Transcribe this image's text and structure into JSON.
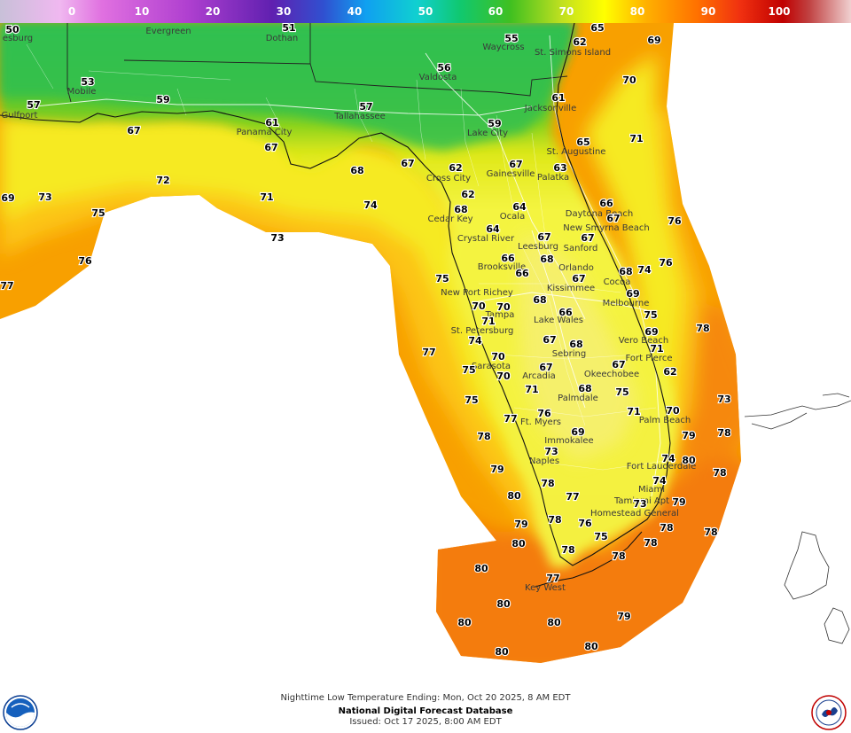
{
  "colorbar": {
    "labels": [
      "0",
      "10",
      "20",
      "30",
      "40",
      "50",
      "60",
      "70",
      "80",
      "90",
      "100"
    ]
  },
  "footer": {
    "line1": "Nighttime Low Temperature Ending: Mon, Oct 20 2025, 8 AM EDT",
    "line2": "National Digital Forecast Database",
    "line3": "Issued: Oct 17 2025, 8:00 AM EDT"
  },
  "logos": {
    "left": "noaa-logo",
    "right": "national-weather-service-logo"
  },
  "cities": [
    "esburg",
    "Evergreen",
    "Dothan",
    "Waycross",
    "St. Simons Island",
    "Valdosta",
    "Mobile",
    "Gulfport",
    "Tallahassee",
    "Jacksonville",
    "Panama City",
    "Lake City",
    "St. Augustine",
    "Gainesville",
    "Palatka",
    "Cross City",
    "Cedar Key",
    "Ocala",
    "Daytona Beach",
    "New Smyrna Beach",
    "Crystal River",
    "Leesburg",
    "Sanford",
    "Brooksville",
    "Orlando",
    "New Port Richey",
    "Kissimmee",
    "Cocoa",
    "Melbourne",
    "Tampa",
    "Lake Wales",
    "St. Petersburg",
    "Vero Beach",
    "Sebring",
    "Fort Pierce",
    "Sarasota",
    "Okeechobee",
    "Arcadia",
    "Palmdale",
    "Palm Beach",
    "Ft. Myers",
    "Immokalee",
    "Naples",
    "Fort Lauderdale",
    "Miami",
    "Tamiami Apt",
    "Homestead General",
    "Key West"
  ],
  "temps": [
    "50",
    "51",
    "55",
    "62",
    "65",
    "69",
    "56",
    "70",
    "53",
    "59",
    "57",
    "61",
    "67",
    "57",
    "61",
    "59",
    "71",
    "67",
    "65",
    "67",
    "62",
    "63",
    "68",
    "67",
    "73",
    "69",
    "72",
    "62",
    "68",
    "64",
    "66",
    "71",
    "76",
    "75",
    "64",
    "67",
    "67",
    "74",
    "73",
    "66",
    "68",
    "67",
    "76",
    "76",
    "74",
    "75",
    "68",
    "66",
    "67",
    "69",
    "77",
    "70",
    "70",
    "68",
    "66",
    "75",
    "71",
    "74",
    "69",
    "78",
    "67",
    "68",
    "71",
    "77",
    "70",
    "75",
    "70",
    "67",
    "67",
    "62",
    "75",
    "71",
    "68",
    "75",
    "77",
    "76",
    "71",
    "70",
    "73",
    "78",
    "78",
    "69",
    "79",
    "73",
    "74",
    "80",
    "79",
    "77",
    "80",
    "78",
    "74",
    "78",
    "80",
    "79",
    "73",
    "79",
    "78",
    "80",
    "76",
    "75",
    "78",
    "78",
    "78",
    "77",
    "78",
    "78",
    "80",
    "80",
    "79",
    "80",
    "80",
    "80"
  ]
}
